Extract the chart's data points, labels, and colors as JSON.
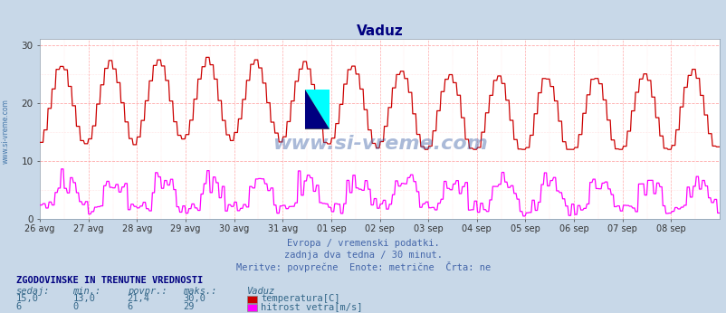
{
  "title": "Vaduz",
  "title_color": "#000080",
  "bg_color": "#c8d8e8",
  "plot_bg_color": "#ffffff",
  "grid_color_dot": "#ffb0b0",
  "grid_color_dash": "#cc8888",
  "ylim": [
    0,
    31
  ],
  "yticks": [
    0,
    10,
    20,
    30
  ],
  "xlabel_dates": [
    "26 avg",
    "27 avg",
    "28 avg",
    "29 avg",
    "30 avg",
    "31 avg",
    "01 sep",
    "02 sep",
    "03 sep",
    "04 sep",
    "05 sep",
    "06 sep",
    "07 sep",
    "08 sep"
  ],
  "temp_color": "#cc0000",
  "wind_color": "#ff00ff",
  "watermark_text": "www.si-vreme.com",
  "watermark_color": "#4466aa",
  "watermark_alpha": 0.45,
  "sub_text1": "Evropa / vremenski podatki.",
  "sub_text2": "zadnja dva tedna / 30 minut.",
  "sub_text3": "Meritve: povprečne  Enote: metrične  Črta: ne",
  "sub_text_color": "#4466aa",
  "bottom_title": "ZGODOVINSKE IN TRENUTNE VREDNOSTI",
  "bottom_title_color": "#000080",
  "col_headers": [
    "sedaj:",
    "min.:",
    "povpr.:",
    "maks.:",
    "Vaduz"
  ],
  "row1": [
    "15,0",
    "13,0",
    "21,4",
    "30,0"
  ],
  "row2": [
    "6",
    "0",
    "6",
    "29"
  ],
  "legend_temp": "temperatura[C]",
  "legend_wind": "hitrost vetra[m/s]",
  "left_label": "www.si-vreme.com",
  "n_points": 672
}
